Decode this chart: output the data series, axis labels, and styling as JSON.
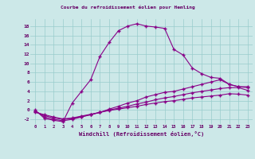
{
  "title": "Courbe du refroidissement éolien pour Hemling",
  "xlabel": "Windchill (Refroidissement éolien,°C)",
  "background_color": "#cce8e8",
  "line_color": "#880088",
  "xlim": [
    -0.5,
    23.5
  ],
  "ylim": [
    -3.0,
    19.5
  ],
  "xticks": [
    0,
    1,
    2,
    3,
    4,
    5,
    6,
    7,
    8,
    9,
    10,
    11,
    12,
    13,
    14,
    15,
    16,
    17,
    18,
    19,
    20,
    21,
    22,
    23
  ],
  "yticks": [
    -2,
    0,
    2,
    4,
    6,
    8,
    10,
    12,
    14,
    16,
    18
  ],
  "series": [
    {
      "x": [
        0,
        1,
        2,
        3,
        4,
        5,
        6,
        7,
        8,
        9,
        10,
        11,
        12,
        13,
        14,
        15,
        16,
        17,
        18,
        19,
        20,
        21,
        22,
        23
      ],
      "y": [
        0,
        -1.8,
        -2.2,
        -2.5,
        1.5,
        4.0,
        6.5,
        11.5,
        14.5,
        17.0,
        18.0,
        18.5,
        18.0,
        17.8,
        17.5,
        13.0,
        11.8,
        9.0,
        7.8,
        7.0,
        6.8,
        5.5,
        5.0,
        5.0
      ]
    },
    {
      "x": [
        0,
        1,
        2,
        3,
        4,
        5,
        6,
        7,
        8,
        9,
        10,
        11,
        12,
        13,
        14,
        15,
        16,
        17,
        18,
        19,
        20,
        21,
        22,
        23
      ],
      "y": [
        -0.2,
        -1.5,
        -2.0,
        -2.3,
        -2.0,
        -1.5,
        -1.0,
        -0.5,
        0.2,
        0.8,
        1.5,
        2.0,
        2.8,
        3.3,
        3.8,
        4.0,
        4.5,
        5.0,
        5.5,
        6.0,
        6.5,
        5.5,
        5.0,
        4.8
      ]
    },
    {
      "x": [
        0,
        1,
        2,
        3,
        4,
        5,
        6,
        7,
        8,
        9,
        10,
        11,
        12,
        13,
        14,
        15,
        16,
        17,
        18,
        19,
        20,
        21,
        22,
        23
      ],
      "y": [
        -0.3,
        -1.2,
        -1.7,
        -2.0,
        -1.8,
        -1.4,
        -1.0,
        -0.5,
        0.0,
        0.4,
        0.8,
        1.3,
        1.7,
        2.2,
        2.6,
        2.9,
        3.3,
        3.7,
        4.0,
        4.3,
        4.6,
        4.8,
        4.8,
        4.2
      ]
    },
    {
      "x": [
        0,
        1,
        2,
        3,
        4,
        5,
        6,
        7,
        8,
        9,
        10,
        11,
        12,
        13,
        14,
        15,
        16,
        17,
        18,
        19,
        20,
        21,
        22,
        23
      ],
      "y": [
        -0.5,
        -1.0,
        -1.5,
        -1.9,
        -1.7,
        -1.3,
        -0.9,
        -0.5,
        -0.1,
        0.2,
        0.5,
        0.8,
        1.2,
        1.5,
        1.8,
        2.0,
        2.3,
        2.6,
        2.8,
        3.0,
        3.2,
        3.5,
        3.4,
        3.2
      ]
    }
  ]
}
